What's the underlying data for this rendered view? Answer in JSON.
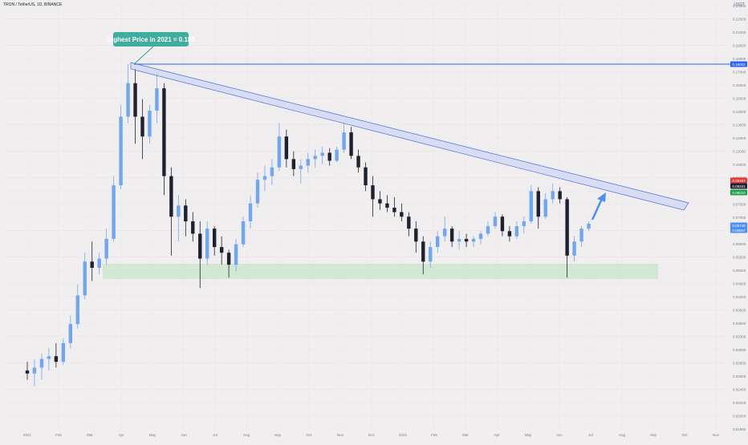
{
  "header": {
    "symbol_title": "TRON / TetherUS, 1D, BINANCE",
    "quote_currency": "USDT"
  },
  "chart_data": {
    "type": "candlestick",
    "y_axis_ticks": [
      "0.24000",
      "0.22500",
      "0.21000",
      "0.19500",
      "0.18000",
      "0.17000",
      "0.16000",
      "0.15000",
      "0.14000",
      "0.13000",
      "0.12000",
      "0.11000",
      "0.10000",
      "0.09000",
      "0.08000",
      "0.07500",
      "0.07000",
      "0.06500",
      "0.06000",
      "0.05500",
      "0.05000",
      "0.04600",
      "0.04200",
      "0.03900",
      "0.03600",
      "0.03300",
      "0.03000",
      "0.02800",
      "0.02600",
      "0.02400",
      "0.02200",
      "0.02000",
      "0.01950"
    ],
    "x_axis_ticks": [
      "2021",
      "Feb",
      "Mar",
      "Apr",
      "May",
      "Jun",
      "Jul",
      "Aug",
      "Sep",
      "Oct",
      "Nov",
      "Dec",
      "2022",
      "Feb",
      "Mar",
      "Apr",
      "May",
      "Jun",
      "Jul",
      "Aug",
      "Sep",
      "Oct",
      "Nov"
    ],
    "price_labels": [
      {
        "value": "0.18002",
        "color": "#2962ff"
      },
      {
        "value": "0.08467",
        "color": "#e53935"
      },
      {
        "value": "0.08331",
        "color": "#1e2230"
      },
      {
        "value": "0.08210",
        "color": "#1e9e4a"
      },
      {
        "value": "0.06749",
        "color": "#4c8ef7"
      },
      {
        "value": "0.06657",
        "color": "#4c8ef7"
      }
    ],
    "annotations": {
      "callout_text": "Highest Price in 2021 = 0.18$",
      "resistance_level": 0.18002,
      "support_zone": [
        0.046,
        0.05
      ],
      "descending_channel": {
        "from": "Apr 2021",
        "to": "Nov 2022"
      }
    },
    "candles": [
      {
        "date": "2021-01-01",
        "open": 0.027,
        "high": 0.0285,
        "low": 0.0255,
        "close": 0.0265
      },
      {
        "date": "2021-01-08",
        "open": 0.0265,
        "high": 0.029,
        "low": 0.0245,
        "close": 0.0275
      },
      {
        "date": "2021-01-15",
        "open": 0.0275,
        "high": 0.03,
        "low": 0.0255,
        "close": 0.029
      },
      {
        "date": "2021-01-22",
        "open": 0.029,
        "high": 0.031,
        "low": 0.027,
        "close": 0.0295
      },
      {
        "date": "2021-01-29",
        "open": 0.0295,
        "high": 0.032,
        "low": 0.0275,
        "close": 0.0285
      },
      {
        "date": "2021-02-05",
        "open": 0.0285,
        "high": 0.033,
        "low": 0.028,
        "close": 0.032
      },
      {
        "date": "2021-02-12",
        "open": 0.032,
        "high": 0.038,
        "low": 0.031,
        "close": 0.036
      },
      {
        "date": "2021-02-19",
        "open": 0.036,
        "high": 0.046,
        "low": 0.035,
        "close": 0.043
      },
      {
        "date": "2021-02-26",
        "open": 0.043,
        "high": 0.056,
        "low": 0.042,
        "close": 0.053
      },
      {
        "date": "2021-03-05",
        "open": 0.053,
        "high": 0.06,
        "low": 0.047,
        "close": 0.051
      },
      {
        "date": "2021-03-12",
        "open": 0.051,
        "high": 0.056,
        "low": 0.049,
        "close": 0.054
      },
      {
        "date": "2021-03-19",
        "open": 0.054,
        "high": 0.065,
        "low": 0.052,
        "close": 0.061
      },
      {
        "date": "2021-03-26",
        "open": 0.061,
        "high": 0.09,
        "low": 0.06,
        "close": 0.085
      },
      {
        "date": "2021-04-02",
        "open": 0.085,
        "high": 0.14,
        "low": 0.083,
        "close": 0.13
      },
      {
        "date": "2021-04-09",
        "open": 0.13,
        "high": 0.18,
        "low": 0.125,
        "close": 0.16
      },
      {
        "date": "2021-04-16",
        "open": 0.16,
        "high": 0.175,
        "low": 0.11,
        "close": 0.13
      },
      {
        "date": "2021-04-23",
        "open": 0.13,
        "high": 0.145,
        "low": 0.1,
        "close": 0.115
      },
      {
        "date": "2021-04-30",
        "open": 0.115,
        "high": 0.14,
        "low": 0.11,
        "close": 0.135
      },
      {
        "date": "2021-05-07",
        "open": 0.135,
        "high": 0.17,
        "low": 0.125,
        "close": 0.155
      },
      {
        "date": "2021-05-14",
        "open": 0.155,
        "high": 0.16,
        "low": 0.08,
        "close": 0.09
      },
      {
        "date": "2021-05-21",
        "open": 0.09,
        "high": 0.095,
        "low": 0.055,
        "close": 0.07
      },
      {
        "date": "2021-05-28",
        "open": 0.07,
        "high": 0.08,
        "low": 0.06,
        "close": 0.075
      },
      {
        "date": "2021-06-04",
        "open": 0.075,
        "high": 0.078,
        "low": 0.062,
        "close": 0.068
      },
      {
        "date": "2021-06-11",
        "open": 0.068,
        "high": 0.072,
        "low": 0.06,
        "close": 0.063
      },
      {
        "date": "2021-06-18",
        "open": 0.063,
        "high": 0.068,
        "low": 0.045,
        "close": 0.054
      },
      {
        "date": "2021-06-25",
        "open": 0.054,
        "high": 0.068,
        "low": 0.052,
        "close": 0.065
      },
      {
        "date": "2021-07-02",
        "open": 0.065,
        "high": 0.066,
        "low": 0.055,
        "close": 0.058
      },
      {
        "date": "2021-07-09",
        "open": 0.058,
        "high": 0.062,
        "low": 0.052,
        "close": 0.056
      },
      {
        "date": "2021-07-16",
        "open": 0.056,
        "high": 0.057,
        "low": 0.048,
        "close": 0.052
      },
      {
        "date": "2021-07-23",
        "open": 0.052,
        "high": 0.061,
        "low": 0.05,
        "close": 0.059
      },
      {
        "date": "2021-07-30",
        "open": 0.059,
        "high": 0.07,
        "low": 0.058,
        "close": 0.068
      },
      {
        "date": "2021-08-06",
        "open": 0.068,
        "high": 0.08,
        "low": 0.065,
        "close": 0.076
      },
      {
        "date": "2021-08-13",
        "open": 0.076,
        "high": 0.092,
        "low": 0.074,
        "close": 0.088
      },
      {
        "date": "2021-08-20",
        "open": 0.088,
        "high": 0.096,
        "low": 0.082,
        "close": 0.09
      },
      {
        "date": "2021-08-27",
        "open": 0.09,
        "high": 0.1,
        "low": 0.085,
        "close": 0.095
      },
      {
        "date": "2021-09-03",
        "open": 0.095,
        "high": 0.125,
        "low": 0.093,
        "close": 0.115
      },
      {
        "date": "2021-09-10",
        "open": 0.115,
        "high": 0.12,
        "low": 0.095,
        "close": 0.1
      },
      {
        "date": "2021-09-17",
        "open": 0.1,
        "high": 0.105,
        "low": 0.09,
        "close": 0.094
      },
      {
        "date": "2021-09-24",
        "open": 0.094,
        "high": 0.1,
        "low": 0.086,
        "close": 0.096
      },
      {
        "date": "2021-10-01",
        "open": 0.096,
        "high": 0.104,
        "low": 0.092,
        "close": 0.1
      },
      {
        "date": "2021-10-08",
        "open": 0.1,
        "high": 0.106,
        "low": 0.095,
        "close": 0.102
      },
      {
        "date": "2021-10-15",
        "open": 0.102,
        "high": 0.108,
        "low": 0.097,
        "close": 0.104
      },
      {
        "date": "2021-10-22",
        "open": 0.104,
        "high": 0.107,
        "low": 0.096,
        "close": 0.099
      },
      {
        "date": "2021-10-29",
        "open": 0.099,
        "high": 0.108,
        "low": 0.098,
        "close": 0.106
      },
      {
        "date": "2021-11-05",
        "open": 0.106,
        "high": 0.125,
        "low": 0.104,
        "close": 0.118
      },
      {
        "date": "2021-11-12",
        "open": 0.118,
        "high": 0.122,
        "low": 0.1,
        "close": 0.102
      },
      {
        "date": "2021-11-19",
        "open": 0.102,
        "high": 0.106,
        "low": 0.092,
        "close": 0.095
      },
      {
        "date": "2021-11-26",
        "open": 0.095,
        "high": 0.098,
        "low": 0.082,
        "close": 0.085
      },
      {
        "date": "2021-12-03",
        "open": 0.085,
        "high": 0.09,
        "low": 0.07,
        "close": 0.078
      },
      {
        "date": "2021-12-10",
        "open": 0.078,
        "high": 0.082,
        "low": 0.073,
        "close": 0.076
      },
      {
        "date": "2021-12-17",
        "open": 0.076,
        "high": 0.08,
        "low": 0.072,
        "close": 0.074
      },
      {
        "date": "2021-12-24",
        "open": 0.074,
        "high": 0.079,
        "low": 0.07,
        "close": 0.072
      },
      {
        "date": "2021-12-31",
        "open": 0.072,
        "high": 0.076,
        "low": 0.068,
        "close": 0.07
      },
      {
        "date": "2022-01-07",
        "open": 0.07,
        "high": 0.072,
        "low": 0.062,
        "close": 0.065
      },
      {
        "date": "2022-01-14",
        "open": 0.065,
        "high": 0.068,
        "low": 0.056,
        "close": 0.06
      },
      {
        "date": "2022-01-21",
        "open": 0.06,
        "high": 0.062,
        "low": 0.049,
        "close": 0.053
      },
      {
        "date": "2022-01-28",
        "open": 0.053,
        "high": 0.06,
        "low": 0.051,
        "close": 0.058
      },
      {
        "date": "2022-02-04",
        "open": 0.058,
        "high": 0.064,
        "low": 0.056,
        "close": 0.062
      },
      {
        "date": "2022-02-11",
        "open": 0.062,
        "high": 0.07,
        "low": 0.06,
        "close": 0.065
      },
      {
        "date": "2022-02-18",
        "open": 0.065,
        "high": 0.066,
        "low": 0.058,
        "close": 0.06
      },
      {
        "date": "2022-02-25",
        "open": 0.06,
        "high": 0.064,
        "low": 0.057,
        "close": 0.061
      },
      {
        "date": "2022-03-04",
        "open": 0.061,
        "high": 0.063,
        "low": 0.058,
        "close": 0.06
      },
      {
        "date": "2022-03-11",
        "open": 0.06,
        "high": 0.062,
        "low": 0.058,
        "close": 0.061
      },
      {
        "date": "2022-03-18",
        "open": 0.061,
        "high": 0.064,
        "low": 0.059,
        "close": 0.063
      },
      {
        "date": "2022-03-25",
        "open": 0.063,
        "high": 0.068,
        "low": 0.062,
        "close": 0.066
      },
      {
        "date": "2022-04-01",
        "open": 0.066,
        "high": 0.072,
        "low": 0.065,
        "close": 0.07
      },
      {
        "date": "2022-04-08",
        "open": 0.07,
        "high": 0.071,
        "low": 0.062,
        "close": 0.064
      },
      {
        "date": "2022-04-15",
        "open": 0.064,
        "high": 0.066,
        "low": 0.06,
        "close": 0.062
      },
      {
        "date": "2022-04-22",
        "open": 0.062,
        "high": 0.068,
        "low": 0.061,
        "close": 0.066
      },
      {
        "date": "2022-04-29",
        "open": 0.066,
        "high": 0.07,
        "low": 0.063,
        "close": 0.068
      },
      {
        "date": "2022-05-06",
        "open": 0.068,
        "high": 0.085,
        "low": 0.067,
        "close": 0.082
      },
      {
        "date": "2022-05-13",
        "open": 0.082,
        "high": 0.084,
        "low": 0.065,
        "close": 0.07
      },
      {
        "date": "2022-05-20",
        "open": 0.07,
        "high": 0.081,
        "low": 0.069,
        "close": 0.078
      },
      {
        "date": "2022-05-27",
        "open": 0.078,
        "high": 0.086,
        "low": 0.076,
        "close": 0.082
      },
      {
        "date": "2022-06-03",
        "open": 0.082,
        "high": 0.084,
        "low": 0.076,
        "close": 0.078
      },
      {
        "date": "2022-06-10",
        "open": 0.078,
        "high": 0.079,
        "low": 0.048,
        "close": 0.055
      },
      {
        "date": "2022-06-17",
        "open": 0.055,
        "high": 0.062,
        "low": 0.053,
        "close": 0.06
      },
      {
        "date": "2022-06-24",
        "open": 0.06,
        "high": 0.066,
        "low": 0.058,
        "close": 0.065
      },
      {
        "date": "2022-07-01",
        "open": 0.065,
        "high": 0.068,
        "low": 0.064,
        "close": 0.067
      }
    ]
  }
}
